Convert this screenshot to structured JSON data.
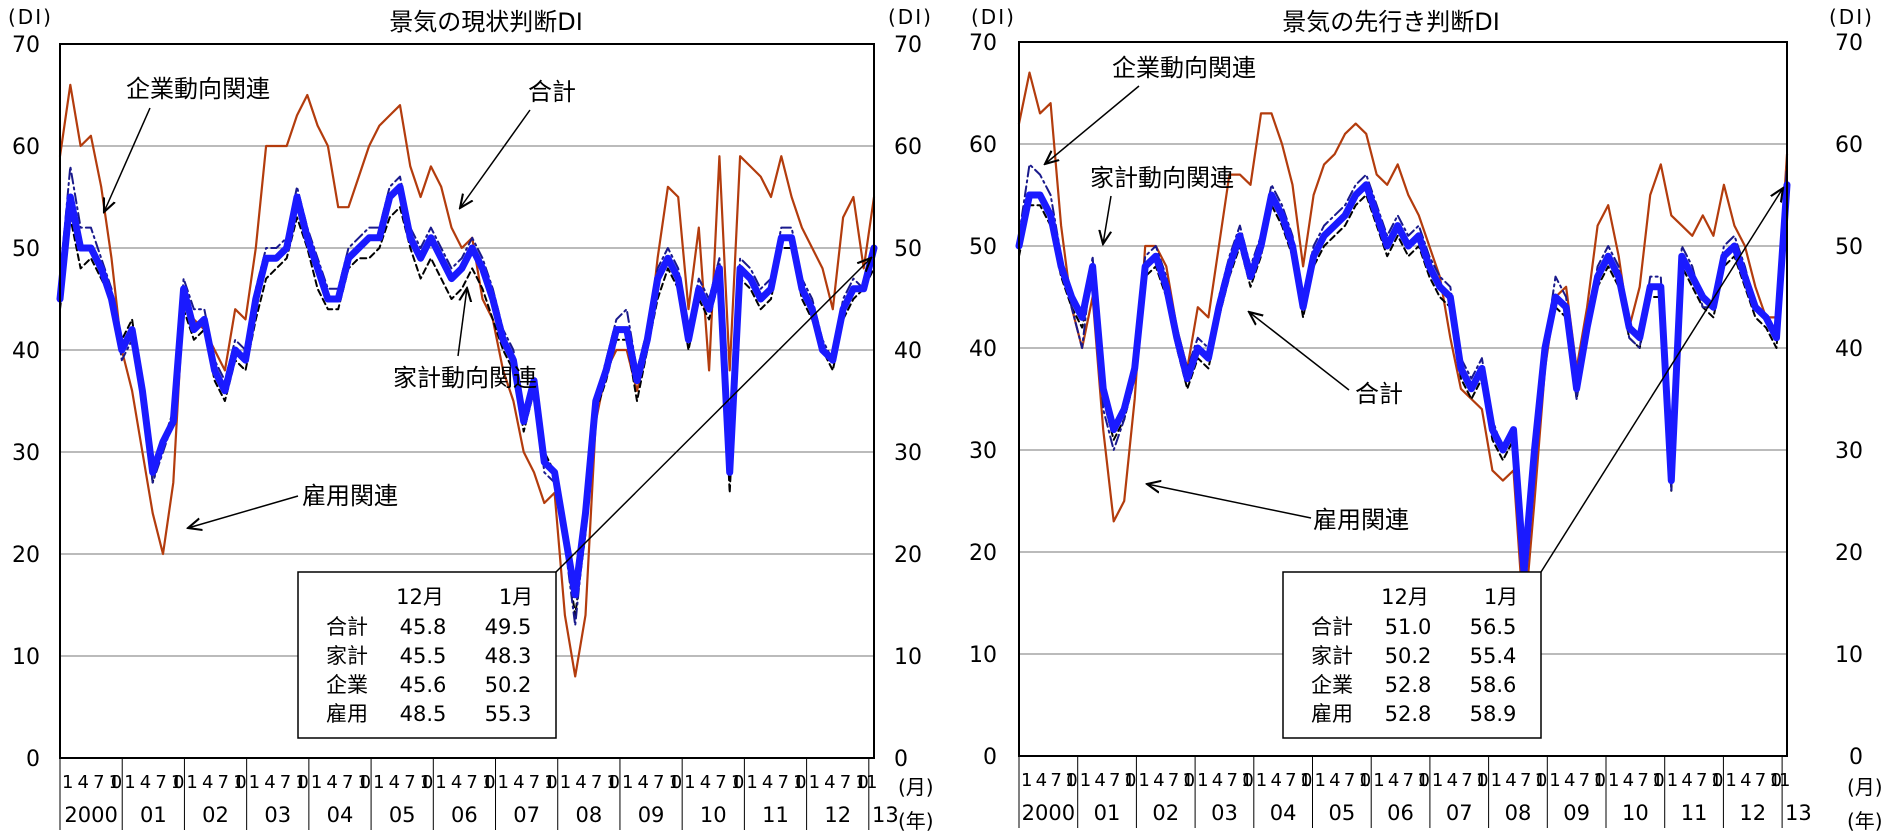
{
  "chart_data": [
    {
      "type": "line",
      "title": "景気の現状判断DI",
      "y_unit_left": "(DI)",
      "y_unit_right": "(DI)",
      "x_unit_month": "(月)",
      "x_unit_year": "(年)",
      "ylim": [
        0,
        70
      ],
      "yticks": [
        "0",
        "10",
        "20",
        "30",
        "40",
        "50",
        "60",
        "70"
      ],
      "grid": true,
      "month_labels": [
        "1",
        "4",
        "7",
        "10"
      ],
      "year_labels": [
        "2000",
        "01",
        "02",
        "03",
        "04",
        "05",
        "06",
        "07",
        "08",
        "09",
        "10",
        "11",
        "12",
        "13"
      ],
      "annotations": {
        "business": "企業動向関連",
        "total": "合計",
        "household": "家計動向関連",
        "employment": "雇用関連"
      },
      "table": {
        "header": [
          "12月",
          "1月"
        ],
        "rows": [
          {
            "label": "合計",
            "dec": "45.8",
            "jan": "49.5"
          },
          {
            "label": "家計",
            "dec": "45.5",
            "jan": "48.3"
          },
          {
            "label": "企業",
            "dec": "45.6",
            "jan": "50.2"
          },
          {
            "label": "雇用",
            "dec": "48.5",
            "jan": "55.3"
          }
        ]
      },
      "series": [
        {
          "key": "total",
          "color": "#1a1aff",
          "values": [
            45,
            55,
            50,
            50,
            48,
            45,
            40,
            42,
            36,
            28,
            31,
            33,
            46,
            42,
            43,
            38,
            36,
            40,
            39,
            45,
            49,
            49,
            50,
            55,
            51,
            48,
            45,
            45,
            49,
            50,
            51,
            51,
            55,
            56,
            51,
            49,
            51,
            49,
            47,
            48,
            50,
            48,
            45,
            41,
            39,
            33,
            37,
            29,
            28,
            22,
            16,
            24,
            35,
            38,
            42,
            42,
            37,
            41,
            47,
            49,
            47,
            41,
            46,
            44,
            48,
            28,
            48,
            47,
            45,
            46,
            51,
            51,
            46,
            44,
            40,
            39,
            44,
            46,
            46,
            50
          ]
        },
        {
          "key": "household",
          "color": "#000000",
          "values": [
            44,
            53,
            48,
            49,
            47,
            45,
            41,
            43,
            36,
            27,
            31,
            34,
            44,
            41,
            42,
            37,
            35,
            39,
            38,
            43,
            47,
            48,
            49,
            53,
            50,
            46,
            44,
            44,
            48,
            49,
            49,
            50,
            53,
            54,
            50,
            47,
            49,
            47,
            45,
            46,
            48,
            46,
            43,
            40,
            38,
            32,
            36,
            30,
            28,
            21,
            14,
            22,
            34,
            37,
            41,
            41,
            35,
            40,
            45,
            48,
            46,
            40,
            45,
            43,
            47,
            26,
            47,
            46,
            44,
            45,
            50,
            50,
            45,
            43,
            40,
            38,
            43,
            45,
            46,
            48
          ]
        },
        {
          "key": "business",
          "color": "#1a1a8c",
          "values": [
            47,
            58,
            52,
            52,
            49,
            46,
            39,
            41,
            35,
            27,
            30,
            33,
            47,
            44,
            44,
            39,
            37,
            41,
            40,
            46,
            50,
            50,
            51,
            56,
            52,
            49,
            46,
            46,
            50,
            51,
            52,
            52,
            56,
            57,
            52,
            50,
            52,
            50,
            48,
            49,
            51,
            49,
            46,
            42,
            40,
            34,
            37,
            28,
            27,
            21,
            13,
            23,
            35,
            39,
            43,
            44,
            38,
            42,
            48,
            50,
            48,
            42,
            47,
            45,
            49,
            29,
            49,
            48,
            46,
            47,
            52,
            52,
            47,
            45,
            41,
            39,
            45,
            47,
            46,
            50
          ]
        },
        {
          "key": "employment",
          "color": "#b33c0d",
          "values": [
            59,
            66,
            60,
            61,
            56,
            49,
            40,
            36,
            30,
            24,
            20,
            27,
            45,
            43,
            42,
            40,
            38,
            44,
            43,
            50,
            60,
            60,
            60,
            63,
            65,
            62,
            60,
            54,
            54,
            57,
            60,
            62,
            63,
            64,
            58,
            55,
            58,
            56,
            52,
            50,
            51,
            45,
            43,
            38,
            35,
            30,
            28,
            25,
            26,
            14,
            8,
            14,
            33,
            38,
            40,
            40,
            36,
            40,
            49,
            56,
            55,
            44,
            52,
            38,
            59,
            38,
            59,
            58,
            57,
            55,
            59,
            55,
            52,
            50,
            48,
            44,
            53,
            55,
            48,
            55
          ]
        }
      ]
    },
    {
      "type": "line",
      "title": "景気の先行き判断DI",
      "y_unit_left": "(DI)",
      "y_unit_right": "(DI)",
      "x_unit_month": "(月)",
      "x_unit_year": "(年)",
      "ylim": [
        0,
        70
      ],
      "yticks": [
        "0",
        "10",
        "20",
        "30",
        "40",
        "50",
        "60",
        "70"
      ],
      "grid": true,
      "month_labels": [
        "1",
        "4",
        "7",
        "10"
      ],
      "year_labels": [
        "2000",
        "01",
        "02",
        "03",
        "04",
        "05",
        "06",
        "07",
        "08",
        "09",
        "10",
        "11",
        "12",
        "13"
      ],
      "annotations": {
        "business": "企業動向関連",
        "household": "家計動向関連",
        "total": "合計",
        "employment": "雇用関連"
      },
      "table": {
        "header": [
          "12月",
          "1月"
        ],
        "rows": [
          {
            "label": "合計",
            "dec": "51.0",
            "jan": "56.5"
          },
          {
            "label": "家計",
            "dec": "50.2",
            "jan": "55.4"
          },
          {
            "label": "企業",
            "dec": "52.8",
            "jan": "58.6"
          },
          {
            "label": "雇用",
            "dec": "52.8",
            "jan": "58.9"
          }
        ]
      },
      "series": [
        {
          "key": "total",
          "color": "#1a1aff",
          "values": [
            50,
            55,
            55,
            53,
            48,
            45,
            43,
            48,
            36,
            32,
            34,
            38,
            48,
            49,
            46,
            41,
            37,
            40,
            39,
            44,
            48,
            51,
            47,
            50,
            55,
            53,
            50,
            44,
            49,
            51,
            52,
            53,
            55,
            56,
            53,
            50,
            52,
            50,
            51,
            48,
            46,
            45,
            38,
            36,
            38,
            32,
            30,
            32,
            18,
            30,
            40,
            45,
            44,
            36,
            42,
            47,
            49,
            47,
            42,
            41,
            46,
            46,
            27,
            49,
            47,
            45,
            44,
            49,
            50,
            47,
            44,
            43,
            41,
            56
          ]
        },
        {
          "key": "household",
          "color": "#000000",
          "values": [
            49,
            54,
            54,
            52,
            47,
            44,
            42,
            47,
            35,
            31,
            33,
            37,
            47,
            48,
            45,
            40,
            36,
            39,
            38,
            43,
            47,
            50,
            46,
            49,
            54,
            52,
            49,
            43,
            48,
            50,
            51,
            52,
            54,
            55,
            52,
            49,
            51,
            49,
            50,
            47,
            45,
            44,
            37,
            35,
            37,
            31,
            29,
            31,
            17,
            29,
            39,
            44,
            43,
            35,
            41,
            46,
            48,
            46,
            41,
            40,
            45,
            45,
            26,
            48,
            46,
            44,
            43,
            48,
            49,
            46,
            43,
            42,
            40,
            55
          ]
        },
        {
          "key": "business",
          "color": "#1a1a8c",
          "values": [
            51,
            58,
            57,
            55,
            49,
            44,
            40,
            49,
            34,
            30,
            33,
            39,
            49,
            50,
            47,
            42,
            38,
            41,
            40,
            45,
            49,
            52,
            48,
            51,
            56,
            54,
            51,
            45,
            50,
            52,
            53,
            54,
            56,
            57,
            54,
            51,
            53,
            51,
            52,
            49,
            47,
            46,
            39,
            37,
            39,
            33,
            30,
            32,
            16,
            28,
            40,
            47,
            45,
            35,
            42,
            48,
            50,
            48,
            41,
            40,
            47,
            47,
            26,
            50,
            48,
            44,
            44,
            50,
            51,
            48,
            44,
            43,
            41,
            58
          ]
        },
        {
          "key": "employment",
          "color": "#b33c0d",
          "values": [
            62,
            67,
            63,
            64,
            52,
            44,
            40,
            45,
            32,
            23,
            25,
            35,
            50,
            50,
            48,
            42,
            38,
            44,
            43,
            50,
            57,
            57,
            56,
            63,
            63,
            60,
            56,
            48,
            55,
            58,
            59,
            61,
            62,
            61,
            57,
            56,
            58,
            55,
            53,
            50,
            47,
            41,
            36,
            35,
            34,
            28,
            27,
            28,
            13,
            25,
            38,
            45,
            46,
            38,
            44,
            52,
            54,
            49,
            42,
            46,
            55,
            58,
            53,
            52,
            51,
            53,
            51,
            56,
            52,
            50,
            46,
            43,
            43,
            59
          ]
        }
      ]
    }
  ]
}
